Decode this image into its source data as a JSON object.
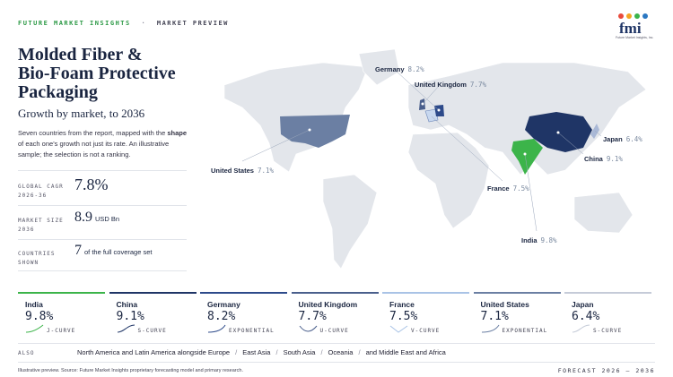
{
  "header": {
    "brand": "FUTURE MARKET INSIGHTS",
    "separator": "·",
    "section": "MARKET PREVIEW",
    "logo": "fmi",
    "logo_tagline": "Future Market Insights, Inc."
  },
  "title_lines": [
    "Molded Fiber &",
    "Bio-Foam Protective",
    "Packaging"
  ],
  "subtitle": "Growth by market, to 2036",
  "description": [
    "Seven countries from the report, mapped with the",
    "shape",
    "of each one's growth not just its rate. An",
    "illustrative sample; the selection is not a ranking."
  ],
  "stats": [
    {
      "label": [
        "GLOBAL CAGR",
        "2026-36"
      ],
      "value": "7.8%"
    },
    {
      "label": [
        "MARKET SIZE",
        "2036"
      ],
      "value": "8.9",
      "unit": "USD Bn"
    },
    {
      "label": [
        "COUNTRIES",
        "SHOWN"
      ],
      "value": "7",
      "unit": "of the full coverage set"
    }
  ],
  "map_labels": [
    {
      "name": "Germany",
      "value": "8.2%"
    },
    {
      "name": "United Kingdom",
      "value": "7.7%"
    },
    {
      "name": "Japan",
      "value": "6.4%"
    },
    {
      "name": "China",
      "value": "9.1%"
    },
    {
      "name": "France",
      "value": "7.5%"
    },
    {
      "name": "United States",
      "value": "7.1%"
    },
    {
      "name": "India",
      "value": "9.8%"
    }
  ],
  "cards": [
    {
      "country": "India",
      "value": "9.8%",
      "curve": "J-CURVE"
    },
    {
      "country": "China",
      "value": "9.1%",
      "curve": "S-CURVE"
    },
    {
      "country": "Germany",
      "value": "8.2%",
      "curve": "EXPONENTIAL"
    },
    {
      "country": "United Kingdom",
      "value": "7.7%",
      "curve": "U-CURVE"
    },
    {
      "country": "France",
      "value": "7.5%",
      "curve": "V-CURVE"
    },
    {
      "country": "United States",
      "value": "7.1%",
      "curve": "EXPONENTIAL"
    },
    {
      "country": "Japan",
      "value": "6.4%",
      "curve": "S-CURVE"
    }
  ],
  "also": {
    "label": "ALSO",
    "items": [
      "North America and Latin America alongside Europe",
      "East Asia",
      "South Asia",
      "Oceania",
      "and Middle East and Africa"
    ],
    "separator": "/"
  },
  "footer": {
    "source": "Illustrative preview. Source: Future Market Insights proprietary forecasting model and primary research.",
    "forecast": "FORECAST 2026 – 2036"
  }
}
